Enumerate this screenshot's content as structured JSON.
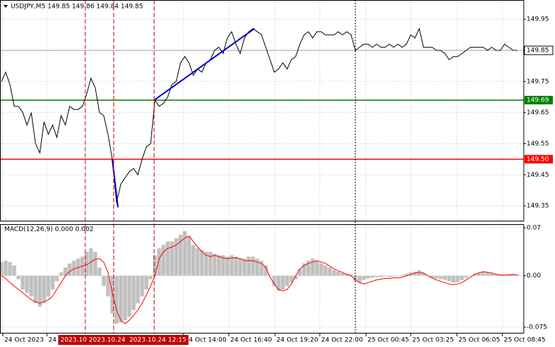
{
  "chart_data": [
    {
      "type": "line",
      "title": "USDJPY,M5  149.85 149.86 149.84 149.85",
      "xlim": [
        -0.33,
        122.5
      ],
      "ylim": [
        149.3,
        150.012
      ],
      "yticks": [
        149.95,
        149.75,
        149.65,
        149.55,
        149.45,
        149.35
      ],
      "grid": true,
      "series": [
        {
          "color": "#000000",
          "values": [
            149.75,
            149.78,
            149.74,
            149.67,
            149.67,
            149.65,
            149.61,
            149.65,
            149.55,
            149.52,
            149.62,
            149.58,
            149.61,
            149.57,
            149.64,
            149.61,
            149.67,
            149.66,
            149.66,
            149.67,
            149.71,
            149.76,
            149.73,
            149.65,
            149.64,
            149.58,
            149.5,
            149.36,
            149.42,
            149.44,
            149.46,
            149.47,
            149.45,
            149.5,
            149.54,
            149.55,
            149.69,
            149.67,
            149.68,
            149.7,
            149.74,
            149.75,
            149.81,
            149.83,
            149.81,
            149.77,
            149.79,
            149.78,
            149.81,
            149.82,
            149.85,
            149.86,
            149.84,
            149.89,
            149.91,
            149.87,
            149.84,
            149.89,
            149.91,
            149.92,
            149.91,
            149.9,
            149.86,
            149.82,
            149.78,
            149.79,
            149.81,
            149.79,
            149.82,
            149.83,
            149.87,
            149.9,
            149.91,
            149.89,
            149.91,
            149.91,
            149.9,
            149.9,
            149.9,
            149.91,
            149.9,
            149.91,
            149.9,
            149.85,
            149.86,
            149.87,
            149.87,
            149.86,
            149.87,
            149.86,
            149.86,
            149.87,
            149.86,
            149.87,
            149.86,
            149.87,
            149.9,
            149.89,
            149.92,
            149.86,
            149.86,
            149.86,
            149.85,
            149.85,
            149.84,
            149.82,
            149.83,
            149.83,
            149.84,
            149.85,
            149.86,
            149.86,
            149.86,
            149.86,
            149.85,
            149.86,
            149.85,
            149.85,
            149.87,
            149.86,
            149.85,
            149.85
          ]
        }
      ],
      "bid": 149.85,
      "hlines": [
        {
          "value": 149.69,
          "label": "149.69",
          "color": "#008000"
        },
        {
          "value": 149.5,
          "label": "149.50",
          "color": "#ff0000"
        }
      ],
      "trendlines": [
        {
          "from": [
            26,
            149.5
          ],
          "to": [
            27.33,
            149.345
          ],
          "color": "#0000c8"
        },
        {
          "from": [
            35.83,
            149.69
          ],
          "to": [
            59.33,
            149.92
          ],
          "color": "#0000c8"
        }
      ],
      "vlines": [
        {
          "at": 19.67,
          "label": "2023.10.",
          "color": "#c00000"
        },
        {
          "at": 26.33,
          "label": "2023.10.24 0",
          "color": "#c00000"
        },
        {
          "at": 35.83,
          "label": "2023.10.24 12:15",
          "color": "#c00000"
        },
        {
          "at": 83,
          "color": "#000000"
        }
      ]
    },
    {
      "type": "bar",
      "title": "MACD(12,26,9) 0.000 0.002",
      "xlim": [
        -0.33,
        122.5
      ],
      "ylim": [
        -0.0843,
        0.0752
      ],
      "yticks": [
        0.07,
        {
          "value": 0,
          "label": "0.00"
        },
        -0.075
      ],
      "xticks": [
        {
          "value": 0.33,
          "label": "24 Oct 2023"
        },
        {
          "value": 10.67,
          "label": "24"
        },
        {
          "value": 42.67,
          "label": "24 Oct 14:00"
        },
        {
          "value": 53.33,
          "label": "24 Oct 16:40"
        },
        {
          "value": 64.17,
          "label": "24 Oct 19:20"
        },
        {
          "value": 74.67,
          "label": "24 Oct 22:00"
        },
        {
          "value": 85.5,
          "label": "25 Oct 00:45"
        },
        {
          "value": 96,
          "label": "25 Oct 03:25"
        },
        {
          "value": 106.83,
          "label": "25 Oct 06:05"
        },
        {
          "value": 117.5,
          "label": "25 Oct 08:45"
        }
      ],
      "grid": true,
      "series": [
        {
          "type": "bar",
          "color": "#c0c0c0",
          "values": [
            0.02,
            0.022,
            0.02,
            0.015,
            -0.005,
            -0.02,
            -0.025,
            -0.03,
            -0.04,
            -0.045,
            -0.04,
            -0.03,
            -0.02,
            -0.008,
            0.005,
            0.012,
            0.018,
            0.022,
            0.025,
            0.028,
            0.035,
            0.04,
            0.035,
            0.012,
            -0.015,
            -0.03,
            -0.055,
            -0.07,
            -0.068,
            -0.065,
            -0.06,
            -0.05,
            -0.04,
            -0.03,
            -0.02,
            -0.005,
            0.03,
            0.04,
            0.045,
            0.05,
            0.05,
            0.055,
            0.06,
            0.065,
            0.058,
            0.045,
            0.04,
            0.038,
            0.035,
            0.035,
            0.032,
            0.03,
            0.03,
            0.028,
            0.03,
            0.028,
            0.025,
            0.025,
            0.028,
            0.028,
            0.025,
            0.022,
            0.015,
            0,
            -0.015,
            -0.022,
            -0.02,
            -0.015,
            -0.01,
            -0.005,
            0.01,
            0.018,
            0.022,
            0.025,
            0.022,
            0.018,
            0.015,
            0.012,
            0.008,
            0.006,
            0.004,
            0.003,
            0.002,
            -0.008,
            -0.01,
            -0.006,
            -0.004,
            -0.003,
            -0.002,
            -0.002,
            -0.001,
            -0.002,
            -0.001,
            0,
            0.001,
            0.003,
            0.005,
            0.006,
            0.008,
            0.004,
            0,
            -0.003,
            -0.004,
            -0.005,
            -0.006,
            -0.008,
            -0.01,
            -0.009,
            -0.006,
            -0.003,
            0,
            0.003,
            0.005,
            0.006,
            0.005,
            0.004,
            0.003,
            0.002,
            0.001,
            0.002,
            0.003,
            0.002
          ]
        },
        {
          "type": "line",
          "color": "#ff0000",
          "values": [
            0,
            -0.004,
            -0.01,
            -0.015,
            -0.02,
            -0.025,
            -0.03,
            -0.035,
            -0.038,
            -0.04,
            -0.038,
            -0.035,
            -0.03,
            -0.02,
            -0.01,
            0,
            0.006,
            0.01,
            0.012,
            0.014,
            0.016,
            0.02,
            0.024,
            0.025,
            0.02,
            0.005,
            -0.025,
            -0.05,
            -0.065,
            -0.07,
            -0.065,
            -0.058,
            -0.05,
            -0.04,
            -0.028,
            -0.015,
            0,
            0.025,
            0.035,
            0.04,
            0.042,
            0.045,
            0.05,
            0.055,
            0.058,
            0.05,
            0.042,
            0.035,
            0.03,
            0.028,
            0.03,
            0.028,
            0.026,
            0.025,
            0.026,
            0.026,
            0.025,
            0.022,
            0.022,
            0.022,
            0.02,
            0.018,
            0.012,
            -0.002,
            -0.012,
            -0.02,
            -0.022,
            -0.02,
            -0.012,
            0,
            0.01,
            0.015,
            0.018,
            0.02,
            0.022,
            0.02,
            0.018,
            0.014,
            0.01,
            0.007,
            0.005,
            0.002,
            0,
            -0.006,
            -0.01,
            -0.012,
            -0.01,
            -0.008,
            -0.006,
            -0.005,
            -0.004,
            -0.004,
            -0.003,
            -0.003,
            -0.002,
            0,
            0.002,
            0.004,
            0.005,
            0.004,
            0,
            -0.003,
            -0.006,
            -0.008,
            -0.01,
            -0.012,
            -0.013,
            -0.012,
            -0.01,
            -0.006,
            -0.002,
            0.002,
            0.004,
            0.006,
            0.005,
            0.004,
            0.002,
            0.001,
            0.001,
            0.001,
            0.002,
            0.001
          ]
        }
      ]
    }
  ]
}
